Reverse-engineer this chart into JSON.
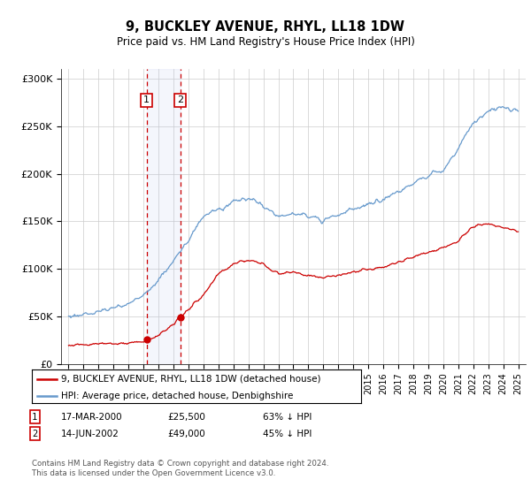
{
  "title": "9, BUCKLEY AVENUE, RHYL, LL18 1DW",
  "subtitle": "Price paid vs. HM Land Registry's House Price Index (HPI)",
  "hpi_color": "#6699cc",
  "price_color": "#cc0000",
  "background_color": "#ffffff",
  "grid_color": "#cccccc",
  "sale1_date": 2000.21,
  "sale1_price": 25500,
  "sale2_date": 2002.45,
  "sale2_price": 49000,
  "legend_entry1": "9, BUCKLEY AVENUE, RHYL, LL18 1DW (detached house)",
  "legend_entry2": "HPI: Average price, detached house, Denbighshire",
  "table_row1": [
    "1",
    "17-MAR-2000",
    "£25,500",
    "63% ↓ HPI"
  ],
  "table_row2": [
    "2",
    "14-JUN-2002",
    "£49,000",
    "45% ↓ HPI"
  ],
  "footer": "Contains HM Land Registry data © Crown copyright and database right 2024.\nThis data is licensed under the Open Government Licence v3.0.",
  "ylim": [
    0,
    310000
  ],
  "xlim_start": 1994.5,
  "xlim_end": 2025.5
}
